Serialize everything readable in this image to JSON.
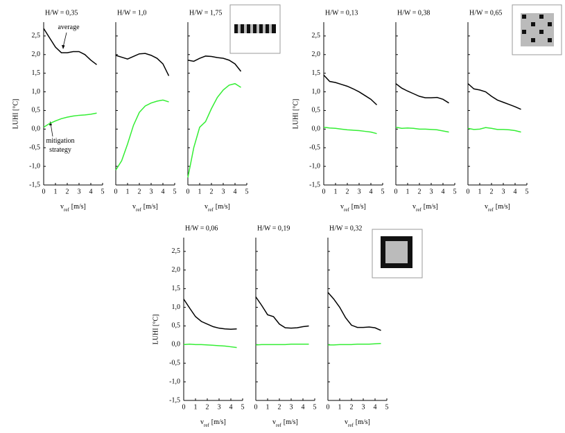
{
  "chart_data": [
    {
      "type": "line",
      "title": "H/W = 0,35",
      "ylabel": "LUHI [°C]",
      "xlabel": "v",
      "xlabel_subscript": "ref",
      "xlabel_unit": "[m/s]",
      "x": [
        0,
        0.5,
        1,
        1.5,
        2,
        2.5,
        3,
        3.5,
        4,
        4.5
      ],
      "series": [
        {
          "name": "average",
          "color": "#000000",
          "values": [
            2.7,
            2.45,
            2.2,
            2.05,
            2.05,
            2.08,
            2.08,
            2.0,
            1.85,
            1.73
          ]
        },
        {
          "name": "mitigation strategy",
          "color": "#33ee33",
          "values": [
            0.05,
            0.15,
            0.22,
            0.28,
            0.32,
            0.35,
            0.37,
            0.38,
            0.4,
            0.43
          ]
        }
      ],
      "xlim": [
        0,
        5
      ],
      "xticks": [
        0,
        1,
        2,
        3,
        4,
        5
      ],
      "ylim": [
        -1.5,
        2.87
      ],
      "yticks": [
        {
          "value": -1.5,
          "label": "-1,5"
        },
        {
          "value": -1,
          "label": "-1,0"
        },
        {
          "value": -0.5,
          "label": "-0,5"
        },
        {
          "value": 0,
          "label": "0,0"
        },
        {
          "value": 0.5,
          "label": "0,5"
        },
        {
          "value": 1,
          "label": "1,0"
        },
        {
          "value": 1.5,
          "label": "1,5"
        },
        {
          "value": 2,
          "label": "2,0"
        },
        {
          "value": 2.5,
          "label": "2,5"
        }
      ]
    },
    {
      "type": "line",
      "title": "H/W = 1,0",
      "xlabel": "v",
      "xlabel_subscript": "ref",
      "xlabel_unit": "[m/s]",
      "x": [
        0,
        0.5,
        1,
        1.5,
        2,
        2.5,
        3,
        3.5,
        4,
        4.5
      ],
      "series": [
        {
          "color": "#000000",
          "values": [
            1.98,
            1.93,
            1.88,
            1.95,
            2.02,
            2.03,
            1.98,
            1.9,
            1.75,
            1.43
          ]
        },
        {
          "color": "#33ee33",
          "values": [
            -1.1,
            -0.85,
            -0.4,
            0.1,
            0.45,
            0.62,
            0.7,
            0.75,
            0.78,
            0.73
          ]
        }
      ],
      "xlim": [
        0,
        5
      ],
      "xticks": [
        0,
        1,
        2,
        3,
        4,
        5
      ],
      "ylim": [
        -1.5,
        2.87
      ],
      "yticks": [
        -1.5,
        -1,
        -0.5,
        0,
        0.5,
        1,
        1.5,
        2,
        2.5
      ]
    },
    {
      "type": "line",
      "title": "H/W = 1,75",
      "xlabel": "v",
      "xlabel_subscript": "ref",
      "xlabel_unit": "[m/s]",
      "x": [
        0,
        0.5,
        1,
        1.5,
        2,
        2.5,
        3,
        3.5,
        4,
        4.5
      ],
      "series": [
        {
          "color": "#000000",
          "values": [
            1.85,
            1.82,
            1.9,
            1.96,
            1.95,
            1.92,
            1.9,
            1.85,
            1.75,
            1.55
          ]
        },
        {
          "color": "#33ee33",
          "values": [
            -1.3,
            -0.5,
            0.05,
            0.2,
            0.55,
            0.85,
            1.05,
            1.18,
            1.22,
            1.12
          ]
        }
      ],
      "xlim": [
        0,
        5
      ],
      "xticks": [
        0,
        1,
        2,
        3,
        4,
        5
      ],
      "ylim": [
        -1.5,
        2.87
      ],
      "yticks": [
        -1.5,
        -1,
        -0.5,
        0,
        0.5,
        1,
        1.5,
        2,
        2.5
      ]
    },
    {
      "type": "line",
      "title": "H/W = 0,13",
      "ylabel": "LUHI [°C]",
      "xlabel": "v",
      "xlabel_subscript": "ref",
      "xlabel_unit": "[m/s]",
      "x": [
        0,
        0.5,
        1,
        1.5,
        2,
        2.5,
        3,
        3.5,
        4,
        4.5
      ],
      "series": [
        {
          "color": "#000000",
          "values": [
            1.45,
            1.28,
            1.25,
            1.2,
            1.15,
            1.08,
            1.0,
            0.9,
            0.8,
            0.65
          ]
        },
        {
          "color": "#33ee33",
          "values": [
            0.05,
            0.03,
            0.02,
            0.0,
            -0.02,
            -0.03,
            -0.04,
            -0.06,
            -0.08,
            -0.12
          ]
        }
      ],
      "xlim": [
        0,
        5
      ],
      "xticks": [
        0,
        1,
        2,
        3,
        4,
        5
      ],
      "ylim": [
        -1.5,
        2.87
      ],
      "yticks": [
        {
          "value": -1.5,
          "label": "-1,5"
        },
        {
          "value": -1,
          "label": "-1,0"
        },
        {
          "value": -0.5,
          "label": "-0,5"
        },
        {
          "value": 0,
          "label": "0,0"
        },
        {
          "value": 0.5,
          "label": "0,5"
        },
        {
          "value": 1,
          "label": "1,0"
        },
        {
          "value": 1.5,
          "label": "1,5"
        },
        {
          "value": 2,
          "label": "2,0"
        },
        {
          "value": 2.5,
          "label": "2,5"
        }
      ]
    },
    {
      "type": "line",
      "title": "H/W = 0,38",
      "xlabel": "v",
      "xlabel_subscript": "ref",
      "xlabel_unit": "[m/s]",
      "x": [
        0,
        0.5,
        1,
        1.5,
        2,
        2.5,
        3,
        3.5,
        4,
        4.5
      ],
      "series": [
        {
          "color": "#000000",
          "values": [
            1.22,
            1.1,
            1.02,
            0.95,
            0.88,
            0.84,
            0.84,
            0.85,
            0.8,
            0.7
          ]
        },
        {
          "color": "#33ee33",
          "values": [
            0.05,
            0.02,
            0.03,
            0.02,
            0.0,
            0.0,
            -0.01,
            -0.02,
            -0.05,
            -0.08
          ]
        }
      ],
      "xlim": [
        0,
        5
      ],
      "xticks": [
        0,
        1,
        2,
        3,
        4,
        5
      ],
      "ylim": [
        -1.5,
        2.87
      ],
      "yticks": [
        -1.5,
        -1,
        -0.5,
        0,
        0.5,
        1,
        1.5,
        2,
        2.5
      ]
    },
    {
      "type": "line",
      "title": "H/W = 0,65",
      "xlabel": "v",
      "xlabel_subscript": "ref",
      "xlabel_unit": "[m/s]",
      "x": [
        0,
        0.5,
        1,
        1.5,
        2,
        2.5,
        3,
        3.5,
        4,
        4.5
      ],
      "series": [
        {
          "color": "#000000",
          "values": [
            1.22,
            1.08,
            1.05,
            1.0,
            0.88,
            0.78,
            0.72,
            0.66,
            0.6,
            0.53
          ]
        },
        {
          "color": "#33ee33",
          "values": [
            0.02,
            -0.01,
            0.0,
            0.04,
            0.02,
            -0.01,
            -0.01,
            -0.02,
            -0.04,
            -0.08
          ]
        }
      ],
      "xlim": [
        0,
        5
      ],
      "xticks": [
        0,
        1,
        2,
        3,
        4,
        5
      ],
      "ylim": [
        -1.5,
        2.87
      ],
      "yticks": [
        -1.5,
        -1,
        -0.5,
        0,
        0.5,
        1,
        1.5,
        2,
        2.5
      ]
    },
    {
      "type": "line",
      "title": "H/W = 0,06",
      "ylabel": "LUHI [°C]",
      "xlabel": "v",
      "xlabel_subscript": "ref",
      "xlabel_unit": "[m/s]",
      "x": [
        0,
        0.5,
        1,
        1.5,
        2,
        2.5,
        3,
        3.5,
        4,
        4.5
      ],
      "series": [
        {
          "color": "#000000",
          "values": [
            1.22,
            0.98,
            0.75,
            0.62,
            0.55,
            0.48,
            0.44,
            0.42,
            0.41,
            0.42
          ]
        },
        {
          "color": "#33ee33",
          "values": [
            0.0,
            0.01,
            0.0,
            0.0,
            -0.01,
            -0.02,
            -0.03,
            -0.04,
            -0.06,
            -0.08
          ]
        }
      ],
      "xlim": [
        0,
        5
      ],
      "xticks": [
        0,
        1,
        2,
        3,
        4,
        5
      ],
      "ylim": [
        -1.5,
        2.87
      ],
      "yticks": [
        {
          "value": -1.5,
          "label": "-1,5"
        },
        {
          "value": -1,
          "label": "-1,0"
        },
        {
          "value": -0.5,
          "label": "-0,5"
        },
        {
          "value": 0,
          "label": "0,0"
        },
        {
          "value": 0.5,
          "label": "0,5"
        },
        {
          "value": 1,
          "label": "1,0"
        },
        {
          "value": 1.5,
          "label": "1,5"
        },
        {
          "value": 2,
          "label": "2,0"
        },
        {
          "value": 2.5,
          "label": "2,5"
        }
      ]
    },
    {
      "type": "line",
      "title": "H/W = 0,19",
      "xlabel": "v",
      "xlabel_subscript": "ref",
      "xlabel_unit": "[m/s]",
      "x": [
        0,
        0.5,
        1,
        1.5,
        2,
        2.5,
        3,
        3.5,
        4,
        4.5
      ],
      "series": [
        {
          "color": "#000000",
          "values": [
            1.28,
            1.05,
            0.8,
            0.75,
            0.55,
            0.45,
            0.44,
            0.45,
            0.48,
            0.5
          ]
        },
        {
          "color": "#33ee33",
          "values": [
            -0.01,
            0.0,
            0.0,
            0.0,
            0.0,
            0.0,
            0.01,
            0.01,
            0.01,
            0.01
          ]
        }
      ],
      "xlim": [
        0,
        5
      ],
      "xticks": [
        0,
        1,
        2,
        3,
        4,
        5
      ],
      "ylim": [
        -1.5,
        2.87
      ],
      "yticks": [
        -1.5,
        -1,
        -0.5,
        0,
        0.5,
        1,
        1.5,
        2,
        2.5
      ]
    },
    {
      "type": "line",
      "title": "H/W = 0,32",
      "xlabel": "v",
      "xlabel_subscript": "ref",
      "xlabel_unit": "[m/s]",
      "x": [
        0,
        0.5,
        1,
        1.5,
        2,
        2.5,
        3,
        3.5,
        4,
        4.5
      ],
      "series": [
        {
          "color": "#000000",
          "values": [
            1.4,
            1.22,
            1.0,
            0.72,
            0.52,
            0.46,
            0.46,
            0.47,
            0.45,
            0.38
          ]
        },
        {
          "color": "#33ee33",
          "values": [
            -0.01,
            -0.01,
            0.0,
            0.0,
            0.0,
            0.01,
            0.01,
            0.01,
            0.02,
            0.03
          ]
        }
      ],
      "xlim": [
        0,
        5
      ],
      "xticks": [
        0,
        1,
        2,
        3,
        4,
        5
      ],
      "ylim": [
        -1.5,
        2.87
      ],
      "yticks": [
        -1.5,
        -1,
        -0.5,
        0,
        0.5,
        1,
        1.5,
        2,
        2.5
      ]
    }
  ]
}
